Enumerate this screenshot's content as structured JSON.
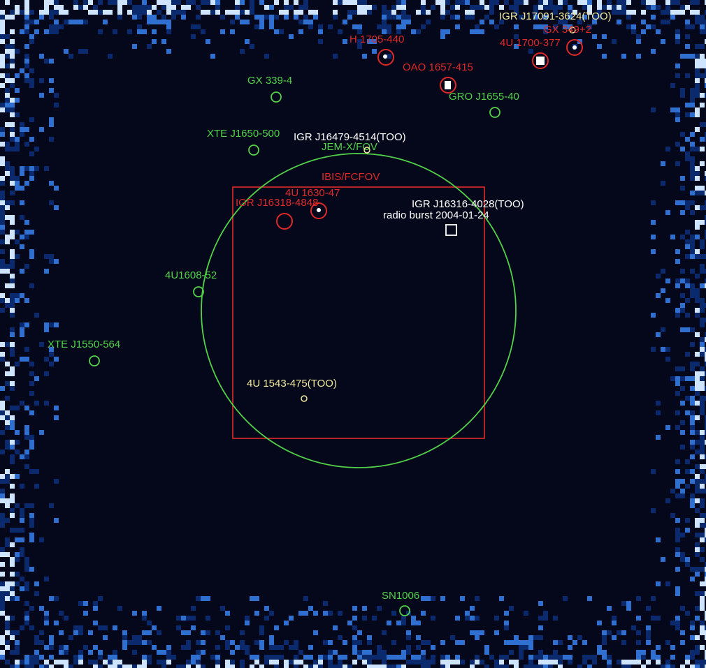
{
  "colors": {
    "background": "#05081a",
    "noise_dark": "#0b2a6e",
    "noise_mid": "#2f6fd0",
    "noise_light": "#cfe4ff",
    "red": "#e02a2a",
    "green": "#52d24a",
    "yellow": "#f2eaa0",
    "white": "#ffffff"
  },
  "fov": {
    "jemx_label": "JEM-X/FOV",
    "ibis_label": "IBIS/FCFOV"
  },
  "sources": {
    "igr_j17091": {
      "label": "IGR J17091-3624(TOO)",
      "kind": "too"
    },
    "gx_349": {
      "label": "GX 349+2",
      "kind": "red"
    },
    "u4_1700": {
      "label": "4U 1700-377",
      "kind": "red"
    },
    "h_1705": {
      "label": "H 1705-440",
      "kind": "red"
    },
    "oao_1657": {
      "label": "OAO 1657-415",
      "kind": "red"
    },
    "gro_j1655": {
      "label": "GRO J1655-40",
      "kind": "green"
    },
    "gx_339": {
      "label": "GX 339-4",
      "kind": "green"
    },
    "xte_j1650": {
      "label": "XTE J1650-500",
      "kind": "green"
    },
    "igr_j16479": {
      "label": "IGR J16479-4514(TOO)",
      "kind": "too"
    },
    "u4_1630": {
      "label": "4U 1630-47",
      "kind": "red"
    },
    "igr_j16318": {
      "label": "IGR J16318-4848",
      "kind": "red"
    },
    "igr_j16316": {
      "label": "IGR J16316-4028(TOO)",
      "kind": "too"
    },
    "radio_burst": {
      "label": "radio burst 2004-01-24",
      "kind": "white"
    },
    "u4_1608": {
      "label": "4U1608-52",
      "kind": "green"
    },
    "xte_j1550": {
      "label": "XTE J1550-564",
      "kind": "green"
    },
    "u4_1543": {
      "label": "4U 1543-475(TOO)",
      "kind": "too"
    },
    "sn1006": {
      "label": "SN1006",
      "kind": "green"
    }
  }
}
